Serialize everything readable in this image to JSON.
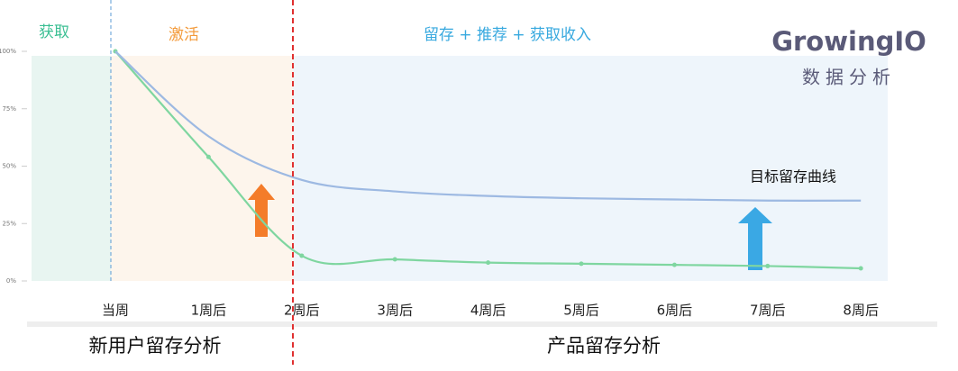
{
  "chart_data": {
    "type": "line",
    "categories": [
      "当周",
      "1周后",
      "2周后",
      "3周后",
      "4周后",
      "5周后",
      "6周后",
      "7周后",
      "8周后"
    ],
    "series": [
      {
        "color": "#7fd6a0",
        "values": [
          100,
          54,
          11,
          9.4,
          8,
          7.5,
          7,
          6.5,
          5.5
        ]
      },
      {
        "name": "目标留存曲线",
        "color": "#9db9e2",
        "values": [
          100,
          63,
          44,
          39,
          37,
          36,
          35.5,
          35,
          35
        ]
      }
    ],
    "ylim": [
      0,
      100
    ],
    "yticks": [
      {
        "value": 0,
        "label": "0%"
      },
      {
        "value": 25,
        "label": "25%"
      },
      {
        "value": 50,
        "label": "50%"
      },
      {
        "value": 75,
        "label": "75%"
      },
      {
        "value": 100,
        "label": "100%"
      }
    ],
    "regions": [
      "获取",
      "激活",
      "留存 + 推荐 + 获取收入"
    ],
    "sections": [
      "新用户留存分析",
      "产品留存分析"
    ]
  },
  "logo": {
    "name": "GrowingIO",
    "tagline": "数据分析"
  }
}
